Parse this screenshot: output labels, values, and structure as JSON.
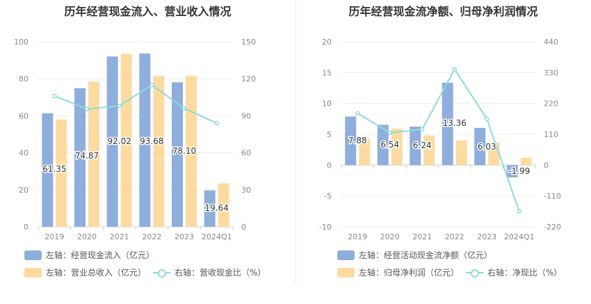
{
  "colors": {
    "blue": "#8eaedc",
    "orange": "#fddba0",
    "line": "#8dd9de",
    "axis": "#d0d0d0",
    "grid": "#ececec",
    "tick": "#888888"
  },
  "chart_data": [
    {
      "type": "bar",
      "title": "历年经营现金流入、营业收入情况",
      "categories": [
        "2019",
        "2020",
        "2021",
        "2022",
        "2023",
        "2024Q1"
      ],
      "y_left": {
        "min": 0,
        "max": 100,
        "ticks": [
          0,
          20,
          40,
          60,
          80,
          100
        ]
      },
      "y_right": {
        "min": 0,
        "max": 150,
        "ticks": [
          0,
          30,
          60,
          90,
          120,
          150
        ]
      },
      "series": [
        {
          "name": "左轴：经营现金流入（亿元）",
          "axis": "left",
          "kind": "bar",
          "values": [
            61.35,
            74.87,
            92.02,
            93.68,
            78.1,
            19.64
          ],
          "labels": [
            "61.35",
            "74.87",
            "92.02",
            "93.68",
            "78.10",
            "19.64"
          ]
        },
        {
          "name": "左轴：营业总收入（亿元）",
          "axis": "left",
          "kind": "bar",
          "values": [
            58,
            78.5,
            93.5,
            81.5,
            81.5,
            23.5
          ]
        },
        {
          "name": "右轴：营收现金比（%）",
          "axis": "right",
          "kind": "line",
          "values": [
            106,
            95.5,
            98,
            115,
            96,
            84
          ]
        }
      ]
    },
    {
      "type": "bar",
      "title": "历年经营现金流净额、归母净利润情况",
      "categories": [
        "2019",
        "2020",
        "2021",
        "2022",
        "2023",
        "2024Q1"
      ],
      "y_left": {
        "min": -10,
        "max": 20,
        "ticks": [
          -10,
          -5,
          0,
          5,
          10,
          15,
          20
        ]
      },
      "y_right": {
        "min": -220,
        "max": 440,
        "ticks": [
          -220,
          -110,
          0,
          110,
          220,
          330,
          440
        ]
      },
      "series": [
        {
          "name": "左轴：经营活动现金流净额（亿元）",
          "axis": "left",
          "kind": "bar",
          "values": [
            7.88,
            6.54,
            6.24,
            13.36,
            6.03,
            -1.99
          ],
          "labels": [
            "7.88",
            "6.54",
            "6.24",
            "13.36",
            "6.03",
            "-1.99"
          ]
        },
        {
          "name": "左轴：归母净利润（亿元）",
          "axis": "left",
          "kind": "bar",
          "values": [
            4.3,
            5.9,
            4.8,
            4.0,
            3.7,
            1.2
          ]
        },
        {
          "name": "右轴：净现比（%）",
          "axis": "right",
          "kind": "line",
          "values": [
            185,
            115,
            128,
            342,
            165,
            -165
          ]
        }
      ]
    }
  ]
}
